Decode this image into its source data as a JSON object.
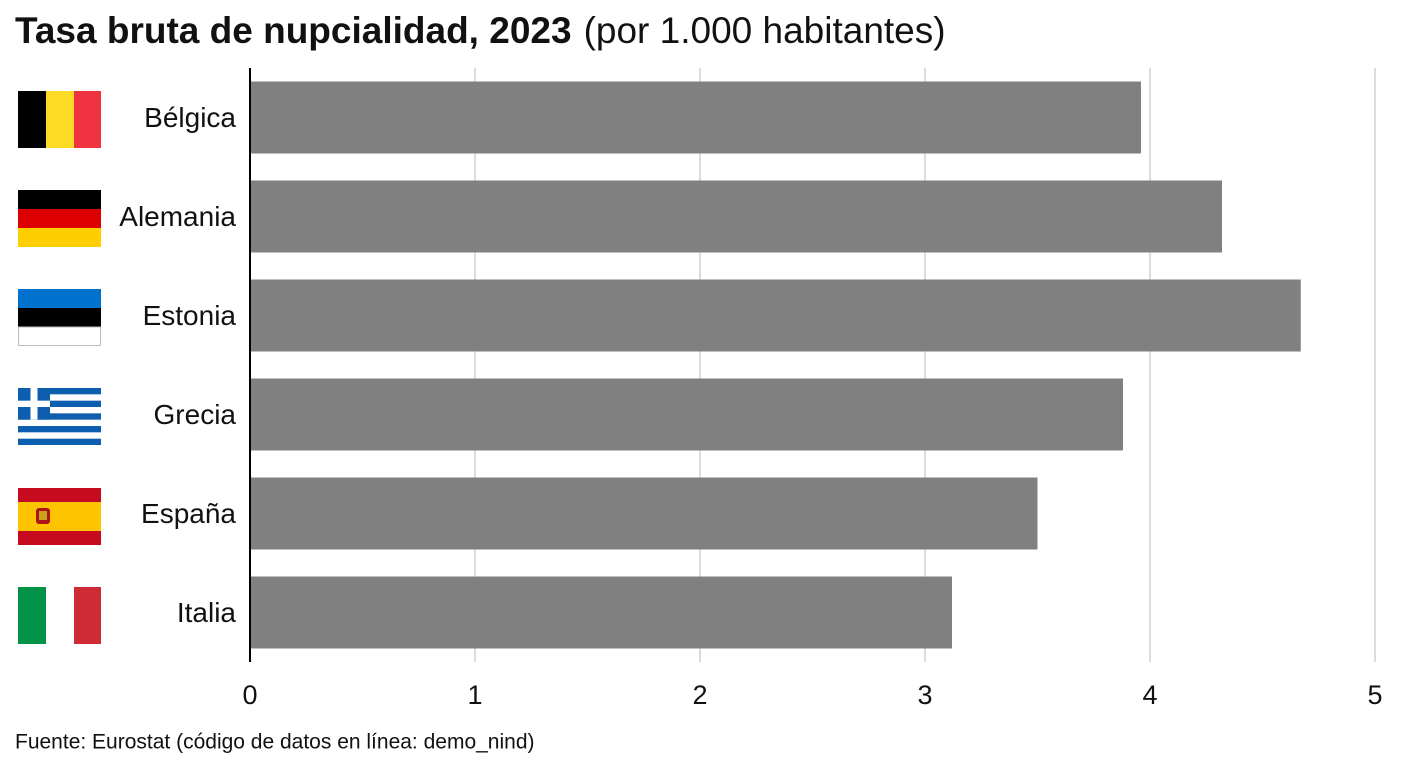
{
  "chart_data": {
    "type": "barh",
    "title": "Tasa bruta de nupcialidad, 2023",
    "subtitle": "(por 1.000 habitantes)",
    "categories": [
      "Bélgica",
      "Alemania",
      "Estonia",
      "Grecia",
      "España",
      "Italia"
    ],
    "values": [
      3.96,
      4.32,
      4.67,
      3.88,
      3.5,
      3.12
    ],
    "color": "#808080",
    "xlim": [
      0,
      5
    ],
    "xticks": [
      0,
      1,
      2,
      3,
      4,
      5
    ],
    "grid": true,
    "source": "Fuente: Eurostat (código de datos en línea: demo_nind)"
  }
}
